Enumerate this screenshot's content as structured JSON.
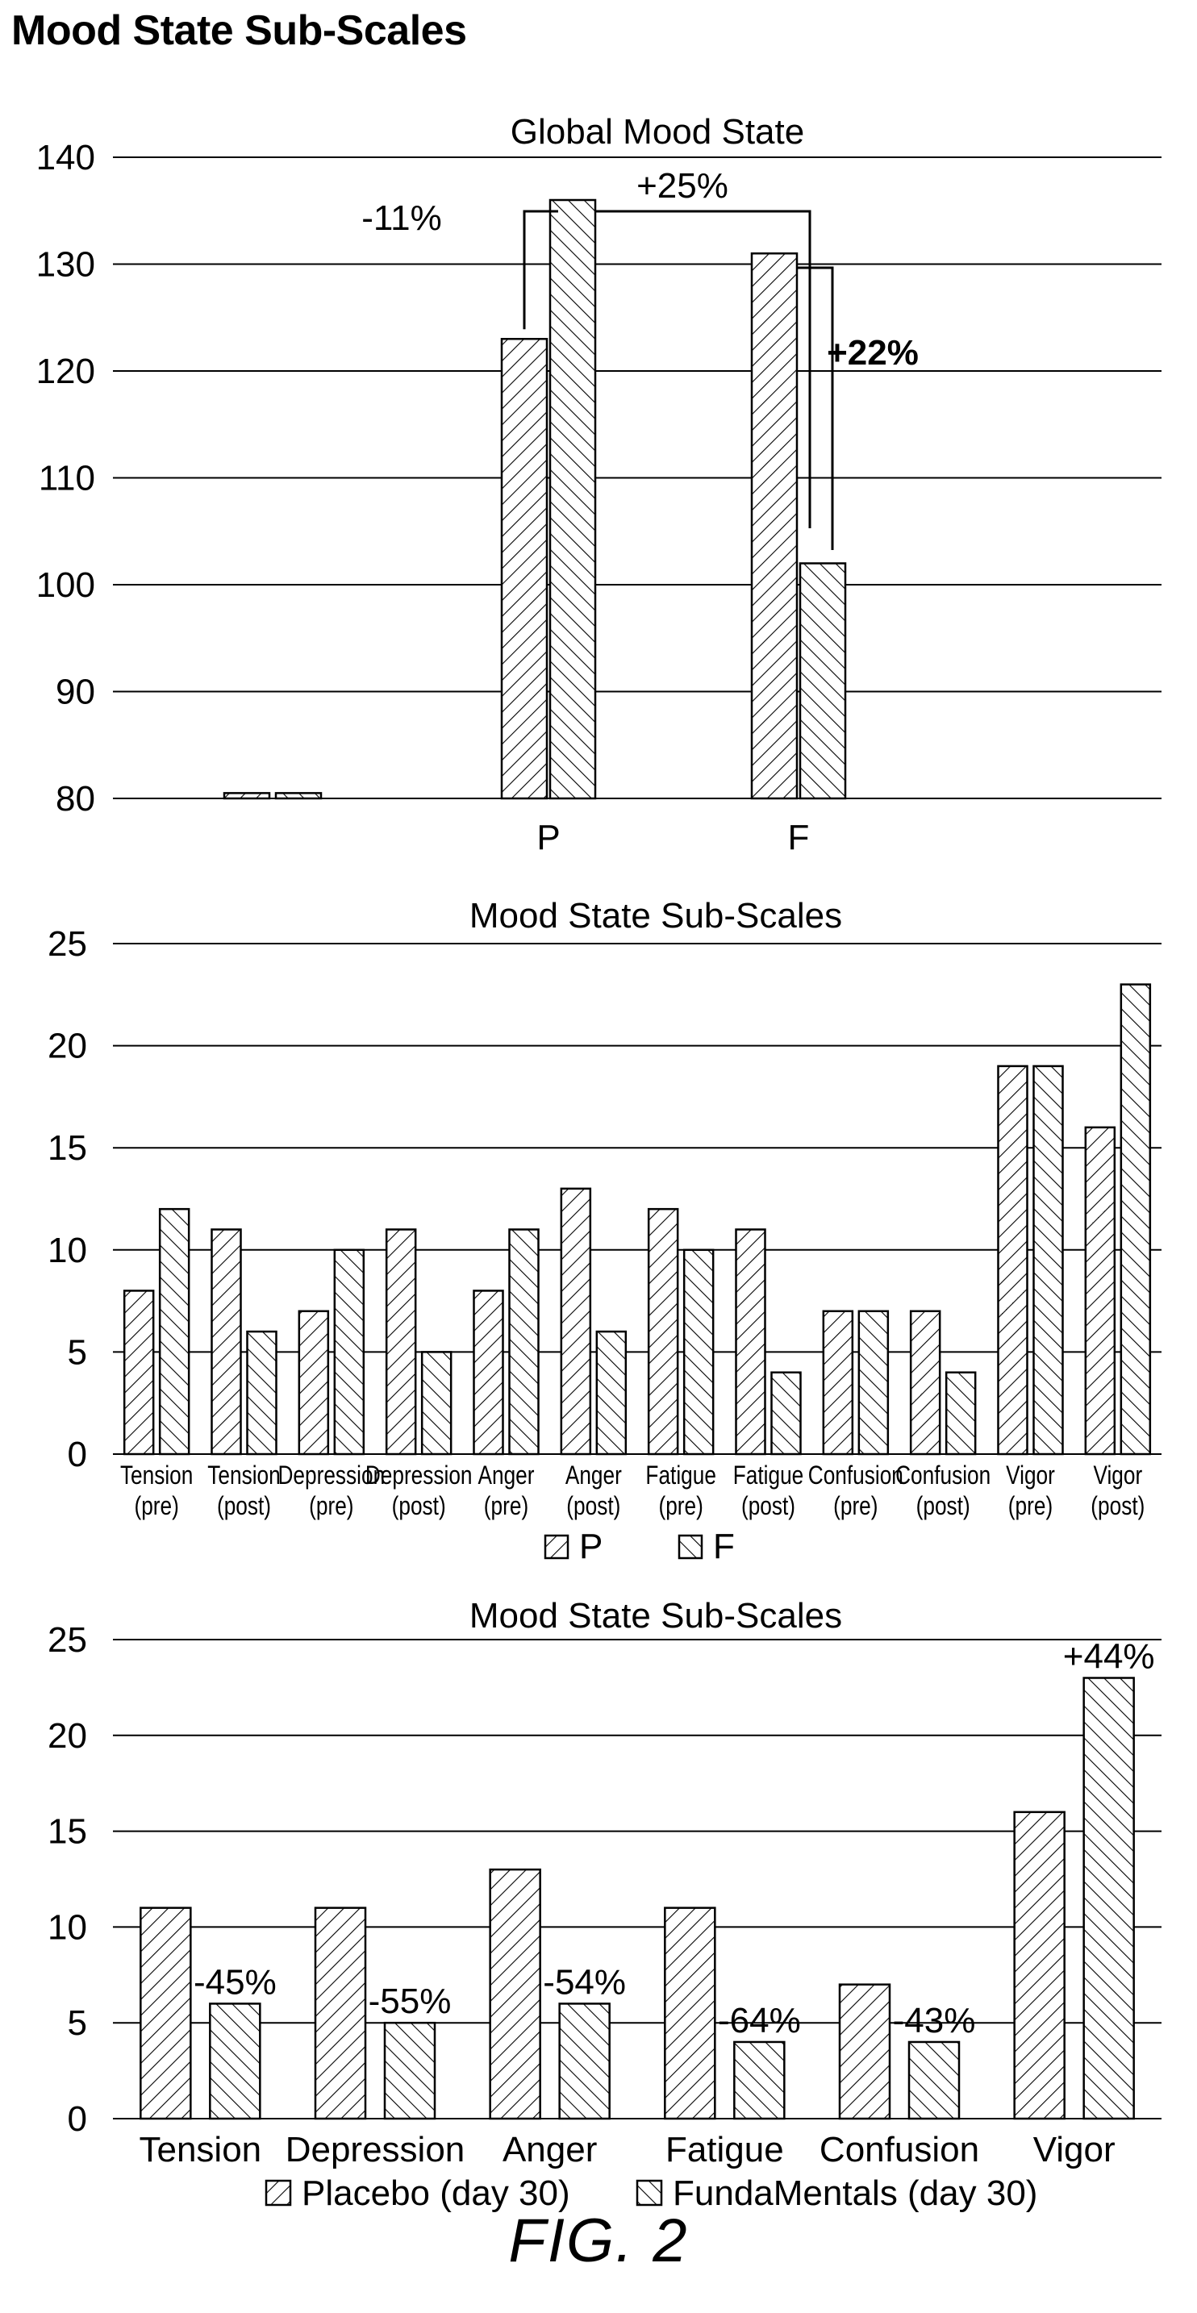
{
  "page": {
    "heading": "Mood State Sub-Scales",
    "figure_label": "FIG.  2"
  },
  "chart_data": [
    {
      "type": "bar",
      "title": "Global Mood State",
      "xlabel": "",
      "ylabel": "",
      "ylim": [
        80,
        140
      ],
      "ytick_step": 10,
      "grid": true,
      "categories": [
        "P",
        "F"
      ],
      "series": [
        {
          "values": [
            123,
            131
          ],
          "pattern": "hatch-forward"
        },
        {
          "values": [
            136,
            102
          ],
          "pattern": "hatch-back"
        }
      ],
      "legend_stub_values": [
        80.5,
        80.5
      ],
      "annotations": [
        {
          "text": "-11%",
          "bold": false
        },
        {
          "text": "+25%",
          "bold": false
        },
        {
          "text": "+22%",
          "bold": true
        }
      ]
    },
    {
      "type": "bar",
      "title": "Mood State Sub-Scales",
      "xlabel": "",
      "ylabel": "",
      "ylim": [
        0,
        25
      ],
      "ytick_step": 5,
      "grid": true,
      "legend_position": "bottom",
      "categories": [
        [
          "Tension",
          "(pre)"
        ],
        [
          "Tension",
          "(post)"
        ],
        [
          "Depression",
          "(pre)"
        ],
        [
          "Depression",
          "(post)"
        ],
        [
          "Anger",
          "(pre)"
        ],
        [
          "Anger",
          "(post)"
        ],
        [
          "Fatigue",
          "(pre)"
        ],
        [
          "Fatigue",
          "(post)"
        ],
        [
          "Confusion",
          "(pre)"
        ],
        [
          "Confusion",
          "(post)"
        ],
        [
          "Vigor",
          "(pre)"
        ],
        [
          "Vigor",
          "(post)"
        ]
      ],
      "series": [
        {
          "name": "P",
          "values": [
            8,
            11,
            7,
            11,
            8,
            13,
            12,
            11,
            7,
            7,
            19,
            16
          ],
          "pattern": "hatch-forward"
        },
        {
          "name": "F",
          "values": [
            12,
            6,
            10,
            5,
            11,
            6,
            10,
            4,
            7,
            4,
            19,
            23
          ],
          "pattern": "hatch-back"
        }
      ]
    },
    {
      "type": "bar",
      "title": "Mood State Sub-Scales",
      "xlabel": "",
      "ylabel": "",
      "ylim": [
        0,
        25
      ],
      "ytick_step": 5,
      "grid": true,
      "legend_position": "bottom",
      "categories": [
        "Tension",
        "Depression",
        "Anger",
        "Fatigue",
        "Confusion",
        "Vigor"
      ],
      "series": [
        {
          "name": "Placebo (day 30)",
          "values": [
            11,
            11,
            13,
            11,
            7,
            16
          ],
          "pattern": "hatch-forward"
        },
        {
          "name": "FundaMentals (day 30)",
          "values": [
            6,
            5,
            6,
            4,
            4,
            23
          ],
          "pattern": "hatch-back"
        }
      ],
      "data_labels": [
        "-45%",
        "-55%",
        "-54%",
        "-64%",
        "-43%",
        "+44%"
      ]
    }
  ]
}
